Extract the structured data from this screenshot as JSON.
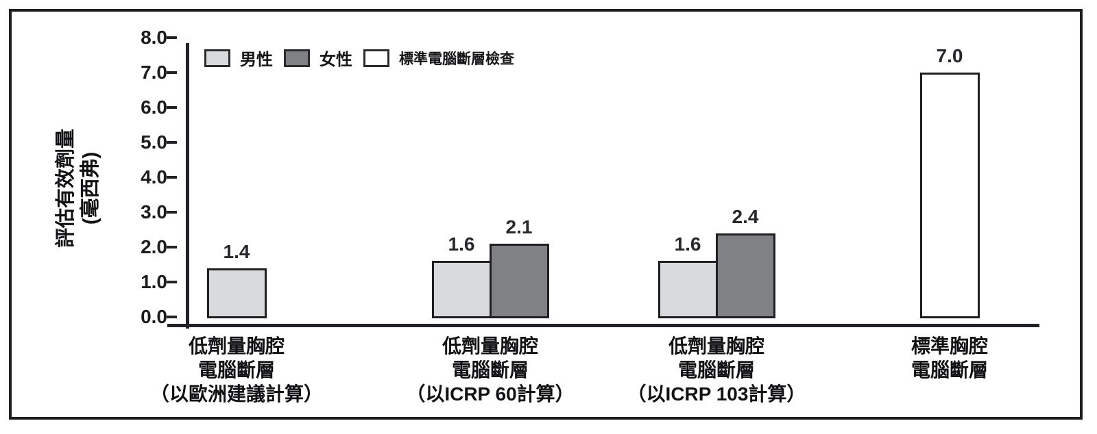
{
  "chart_data": {
    "type": "bar",
    "title": "",
    "ylabel_line1": "評估有效劑量",
    "ylabel_line2": "(毫西弗)",
    "ylabel": "評估有效劑量 (毫西弗)",
    "xlabel": "",
    "ylim": [
      0.0,
      8.0
    ],
    "ytick_labels": [
      "0.0",
      "1.0",
      "2.0",
      "3.0",
      "4.0",
      "5.0",
      "6.0",
      "7.0",
      "8.0"
    ],
    "grid": false,
    "legend_position": "top-left",
    "legend": [
      {
        "label": "男性",
        "color": "#d9dadb"
      },
      {
        "label": "女性",
        "color": "#7f8184"
      },
      {
        "label": "標準電腦斷層檢查",
        "color": "#ffffff"
      }
    ],
    "groups": [
      {
        "label_lines": [
          "低劑量胸腔",
          "電腦斷層",
          "（以歐洲建議計算）"
        ],
        "bars": [
          {
            "series": "男性",
            "value": 1.4,
            "label": "1.4"
          }
        ]
      },
      {
        "label_lines": [
          "低劑量胸腔",
          "電腦斷層",
          "（以ICRP 60計算）"
        ],
        "bars": [
          {
            "series": "男性",
            "value": 1.6,
            "label": "1.6"
          },
          {
            "series": "女性",
            "value": 2.1,
            "label": "2.1"
          }
        ]
      },
      {
        "label_lines": [
          "低劑量胸腔",
          "電腦斷層",
          "（以ICRP 103計算）"
        ],
        "bars": [
          {
            "series": "男性",
            "value": 1.6,
            "label": "1.6"
          },
          {
            "series": "女性",
            "value": 2.4,
            "label": "2.4"
          }
        ]
      },
      {
        "label_lines": [
          "標準胸腔",
          "電腦斷層"
        ],
        "bars": [
          {
            "series": "標準電腦斷層檢查",
            "value": 7.0,
            "label": "7.0"
          }
        ]
      }
    ],
    "colors": {
      "axis": "#232026",
      "bar_border": "#1f1f22",
      "frame_border": "#1d1d1f",
      "background": "#ffffff"
    }
  }
}
